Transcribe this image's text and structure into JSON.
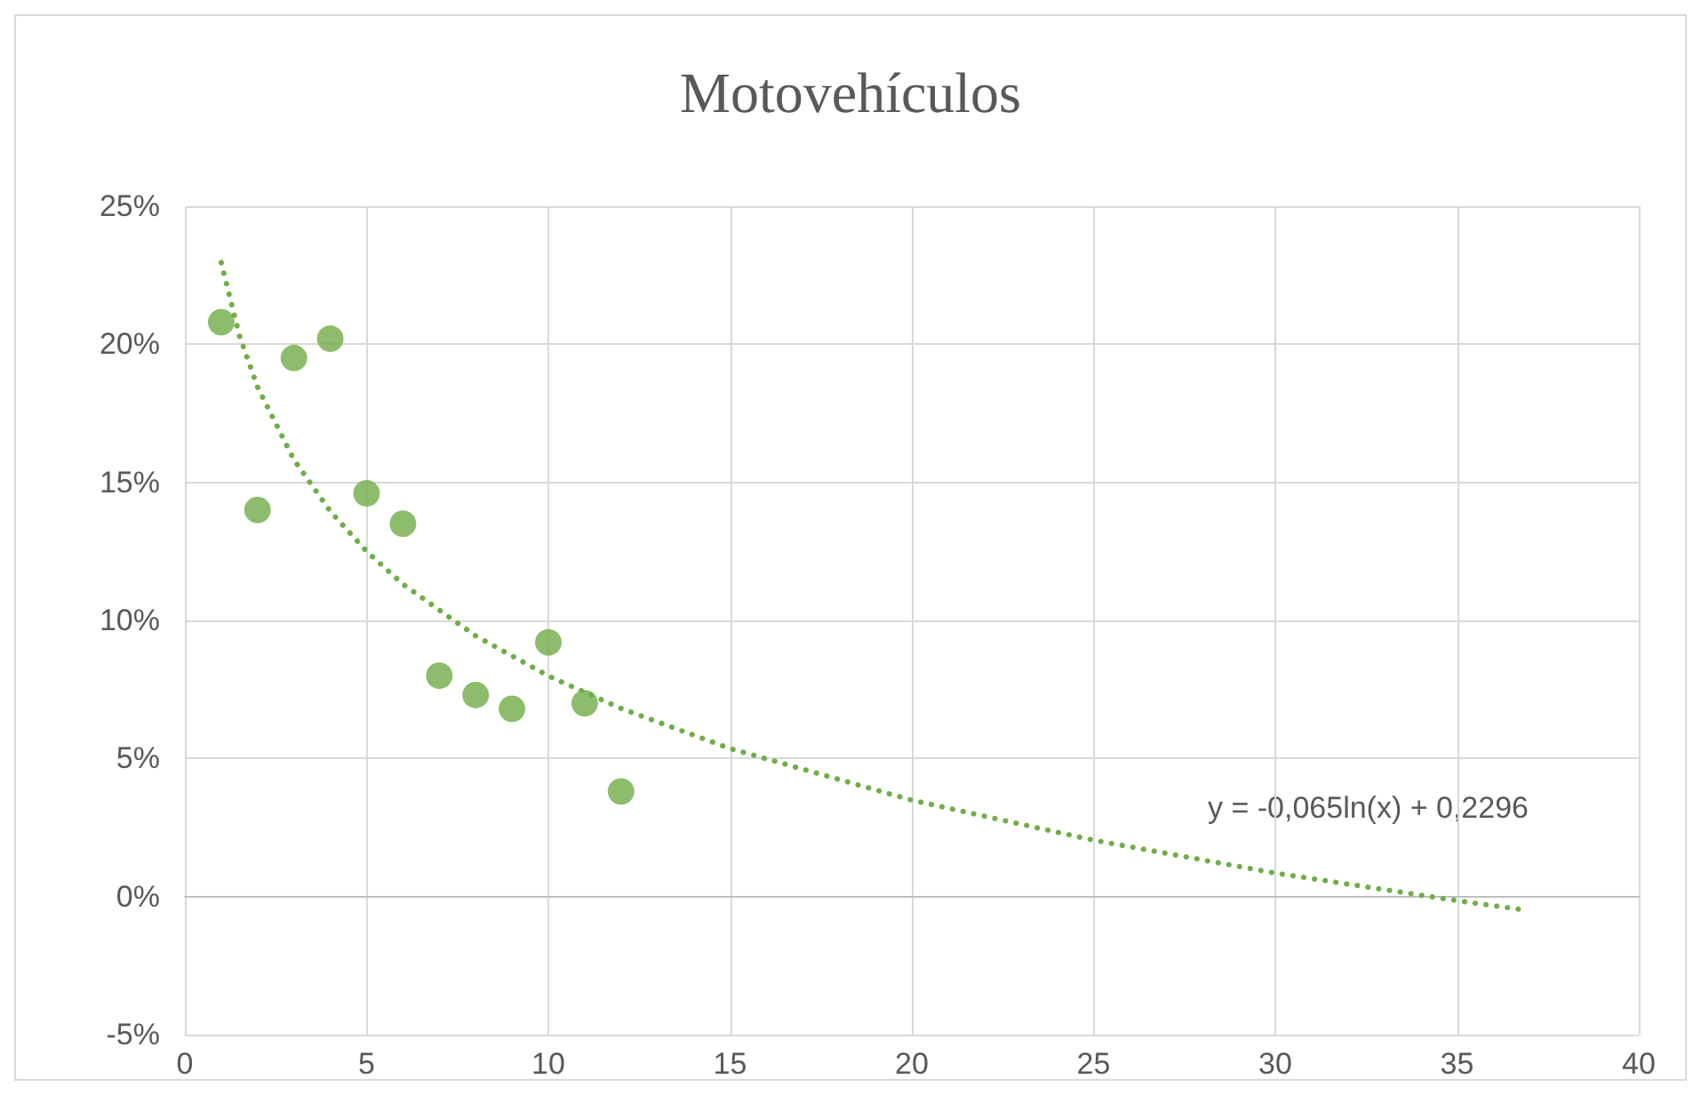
{
  "chart_data": {
    "type": "scatter",
    "title": "Motovehículos",
    "xlim": [
      0,
      40
    ],
    "xticks": [
      0,
      5,
      10,
      15,
      20,
      25,
      30,
      35,
      40
    ],
    "ylim": [
      -5,
      25
    ],
    "yticks": [
      {
        "value": -5,
        "label": "-5%"
      },
      {
        "value": 0,
        "label": "0%"
      },
      {
        "value": 5,
        "label": "5%"
      },
      {
        "value": 10,
        "label": "10%"
      },
      {
        "value": 15,
        "label": "15%"
      },
      {
        "value": 20,
        "label": "20%"
      },
      {
        "value": 25,
        "label": "25%"
      }
    ],
    "grid": true,
    "series": [
      {
        "color": "#70ad47",
        "marker": "circle",
        "x": [
          1,
          2,
          3,
          4,
          5,
          6,
          7,
          8,
          9,
          10,
          11,
          12
        ],
        "values": [
          20.8,
          14.0,
          19.5,
          20.2,
          14.6,
          13.5,
          8.0,
          7.3,
          6.8,
          9.2,
          7.0,
          3.8
        ]
      },
      {
        "type": "line",
        "color": "#70ad47",
        "line_style": "dotted",
        "marker": "none",
        "x": [
          1,
          1.5,
          2,
          3,
          4,
          5,
          6,
          8,
          10,
          12,
          15,
          20,
          25,
          30,
          35,
          36.7
        ],
        "values": [
          22.96,
          20.32,
          18.45,
          15.82,
          13.95,
          12.5,
          11.31,
          9.44,
          7.99,
          6.81,
          5.36,
          3.49,
          2.04,
          0.85,
          -0.15,
          -0.46
        ]
      }
    ],
    "annotations": [
      "y = -0,065ln(x) + 0,2296"
    ]
  }
}
